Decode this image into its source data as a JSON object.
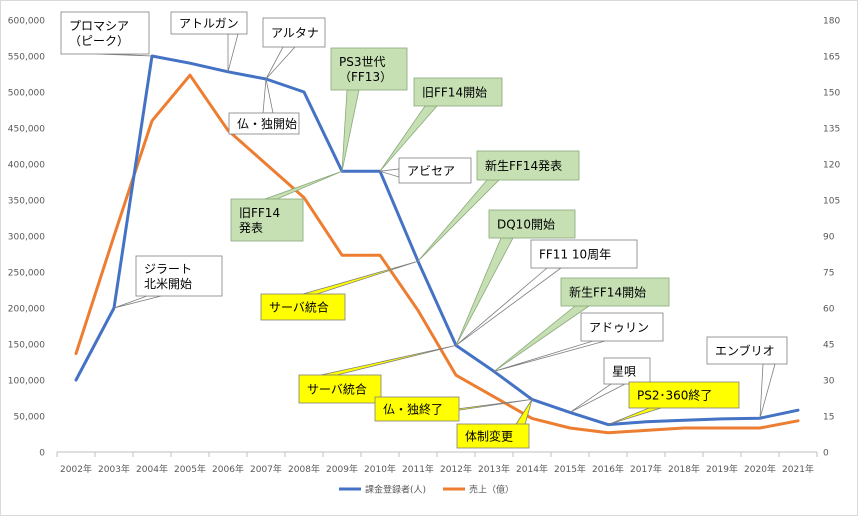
{
  "chart_data": {
    "type": "line",
    "title": "",
    "x": [
      "2002年",
      "2003年",
      "2004年",
      "2005年",
      "2006年",
      "2007年",
      "2008年",
      "2009年",
      "2010年",
      "2011年",
      "2012年",
      "2013年",
      "2014年",
      "2015年",
      "2016年",
      "2017年",
      "2018年",
      "2019年",
      "2020年",
      "2021年"
    ],
    "y_left_ticks": [
      "0",
      "50,000",
      "100,000",
      "150,000",
      "200,000",
      "250,000",
      "300,000",
      "350,000",
      "400,000",
      "450,000",
      "500,000",
      "550,000",
      "600,000"
    ],
    "y_right_ticks": [
      "0",
      "15",
      "30",
      "45",
      "60",
      "75",
      "90",
      "105",
      "120",
      "135",
      "150",
      "165",
      "180"
    ],
    "ylim_left": [
      0,
      600000
    ],
    "ylim_right": [
      0,
      180
    ],
    "grid": false,
    "legend_position": "bottom",
    "series": [
      {
        "name": "課金登録者(人)",
        "axis": "left",
        "color": "#4472C4",
        "values": [
          100000,
          200000,
          550000,
          540000,
          528000,
          518000,
          500000,
          390000,
          390000,
          265000,
          148000,
          112000,
          73000,
          55000,
          38000,
          42000,
          44000,
          46000,
          47000,
          58000
        ]
      },
      {
        "name": "売上（億）",
        "axis": "right",
        "color": "#ED7D31",
        "values": [
          41,
          90,
          138,
          157,
          134,
          120,
          106,
          82,
          82,
          59,
          32,
          23,
          14,
          10,
          8,
          9,
          10,
          10,
          10,
          13
        ]
      }
    ],
    "annotations": [
      {
        "text": [
          "プロマシア",
          "（ピーク）"
        ],
        "style": "white",
        "series": 0,
        "year": "2004年"
      },
      {
        "text": [
          "アトルガン"
        ],
        "style": "white",
        "series": 0,
        "year": "2006年"
      },
      {
        "text": [
          "アルタナ"
        ],
        "style": "white",
        "series": 0,
        "year": "2007年"
      },
      {
        "text": [
          "仏・独開始"
        ],
        "style": "white",
        "series": 0,
        "year": "2007年"
      },
      {
        "text": [
          "PS3世代",
          "（FF13）"
        ],
        "style": "green",
        "series": 0,
        "year": "2009年"
      },
      {
        "text": [
          "旧FF14開始"
        ],
        "style": "green",
        "series": 0,
        "year": "2010年"
      },
      {
        "text": [
          "アビセア"
        ],
        "style": "white",
        "series": 0,
        "year": "2010年"
      },
      {
        "text": [
          "旧FF14",
          "発表"
        ],
        "style": "green",
        "series": 0,
        "year": "2009年"
      },
      {
        "text": [
          "新生FF14発表"
        ],
        "style": "green",
        "series": 0,
        "year": "2011年"
      },
      {
        "text": [
          "ジラート",
          "北米開始"
        ],
        "style": "white",
        "series": 0,
        "year": "2003年"
      },
      {
        "text": [
          "サーバ統合"
        ],
        "style": "yellow",
        "series": 0,
        "year": "2011年"
      },
      {
        "text": [
          "DQ10開始"
        ],
        "style": "green",
        "series": 0,
        "year": "2012年"
      },
      {
        "text": [
          "FF11 10周年"
        ],
        "style": "white",
        "series": 0,
        "year": "2012年"
      },
      {
        "text": [
          "新生FF14開始"
        ],
        "style": "green",
        "series": 0,
        "year": "2013年"
      },
      {
        "text": [
          "アドゥリン"
        ],
        "style": "white",
        "series": 0,
        "year": "2013年"
      },
      {
        "text": [
          "サーバ統合"
        ],
        "style": "yellow",
        "series": 0,
        "year": "2012年"
      },
      {
        "text": [
          "仏・独終了"
        ],
        "style": "yellow",
        "series": 0,
        "year": "2014年"
      },
      {
        "text": [
          "体制変更"
        ],
        "style": "yellow",
        "series": 0,
        "year": "2014年"
      },
      {
        "text": [
          "星唄"
        ],
        "style": "white",
        "series": 0,
        "year": "2015年"
      },
      {
        "text": [
          "PS2･360終了"
        ],
        "style": "yellow",
        "series": 0,
        "year": "2016年"
      },
      {
        "text": [
          "エンブリオ"
        ],
        "style": "white",
        "series": 0,
        "year": "2020年"
      }
    ]
  }
}
